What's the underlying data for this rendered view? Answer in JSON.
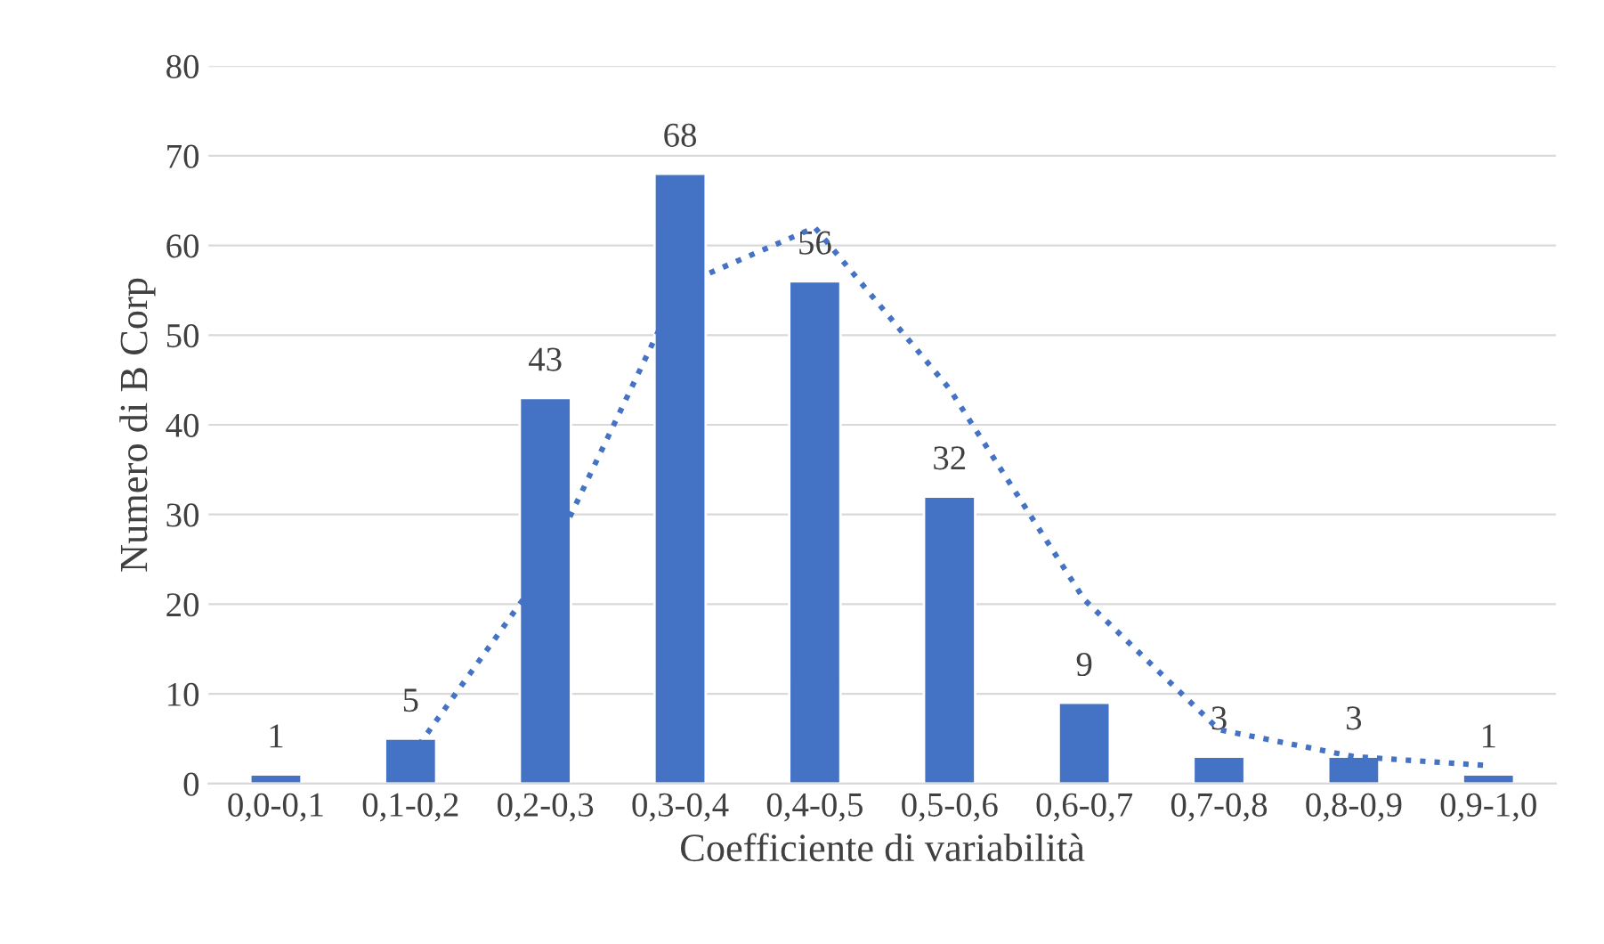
{
  "chart_data": {
    "type": "bar",
    "xlabel": "Coefficiente di variabilità",
    "ylabel": "Numero di B Corp",
    "categories": [
      "0,0-0,1",
      "0,1-0,2",
      "0,2-0,3",
      "0,3-0,4",
      "0,4-0,5",
      "0,5-0,6",
      "0,6-0,7",
      "0,7-0,8",
      "0,8-0,9",
      "0,9-1,0"
    ],
    "series": [
      {
        "color": "#4472c4",
        "values": [
          1,
          5,
          43,
          68,
          56,
          32,
          9,
          3,
          3,
          1
        ],
        "value_labels": [
          "1",
          "5",
          "43",
          "68",
          "56",
          "32",
          "9",
          "3",
          "3",
          "1"
        ]
      },
      {
        "type": "line",
        "color": "#4472c4",
        "line_style": "dotted",
        "values": [
          null,
          3,
          24,
          55.5,
          62,
          44,
          20.5,
          6,
          3,
          2
        ]
      }
    ],
    "ylim": [
      0,
      80
    ],
    "yticks": [
      0,
      10,
      20,
      30,
      40,
      50,
      60,
      70,
      80
    ],
    "grid": "y",
    "legend": false
  }
}
